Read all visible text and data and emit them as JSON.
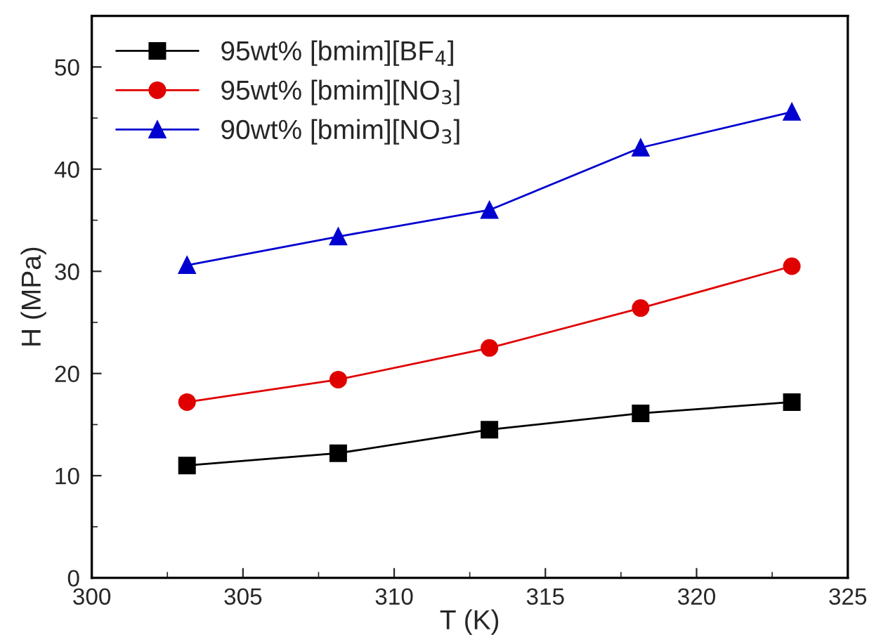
{
  "chart_data": {
    "type": "line",
    "xlabel": "T (K)",
    "ylabel": "H (MPa)",
    "x": [
      303.15,
      308.15,
      313.15,
      318.15,
      323.15
    ],
    "series": [
      {
        "name": "95wt% [bmim][BF$_{4}$]",
        "color": "#000000",
        "marker": "square",
        "values": [
          11.0,
          12.2,
          14.5,
          16.1,
          17.2
        ]
      },
      {
        "name": "95wt% [bmim][NO$_{3}$]",
        "color": "#e00000",
        "marker": "circle",
        "values": [
          17.2,
          19.4,
          22.5,
          26.4,
          30.5
        ]
      },
      {
        "name": "90wt% [bmim][NO$_{3}$]",
        "color": "#0000d0",
        "marker": "triangle",
        "values": [
          30.6,
          33.4,
          36.0,
          42.1,
          45.6
        ]
      }
    ],
    "xlim": [
      300,
      325
    ],
    "xticks": [
      300,
      305,
      310,
      315,
      320,
      325
    ],
    "ylim": [
      0,
      55
    ],
    "yticks": [
      0,
      10,
      20,
      30,
      40,
      50
    ],
    "grid": false,
    "legend": "top left",
    "line_style": "solid"
  }
}
